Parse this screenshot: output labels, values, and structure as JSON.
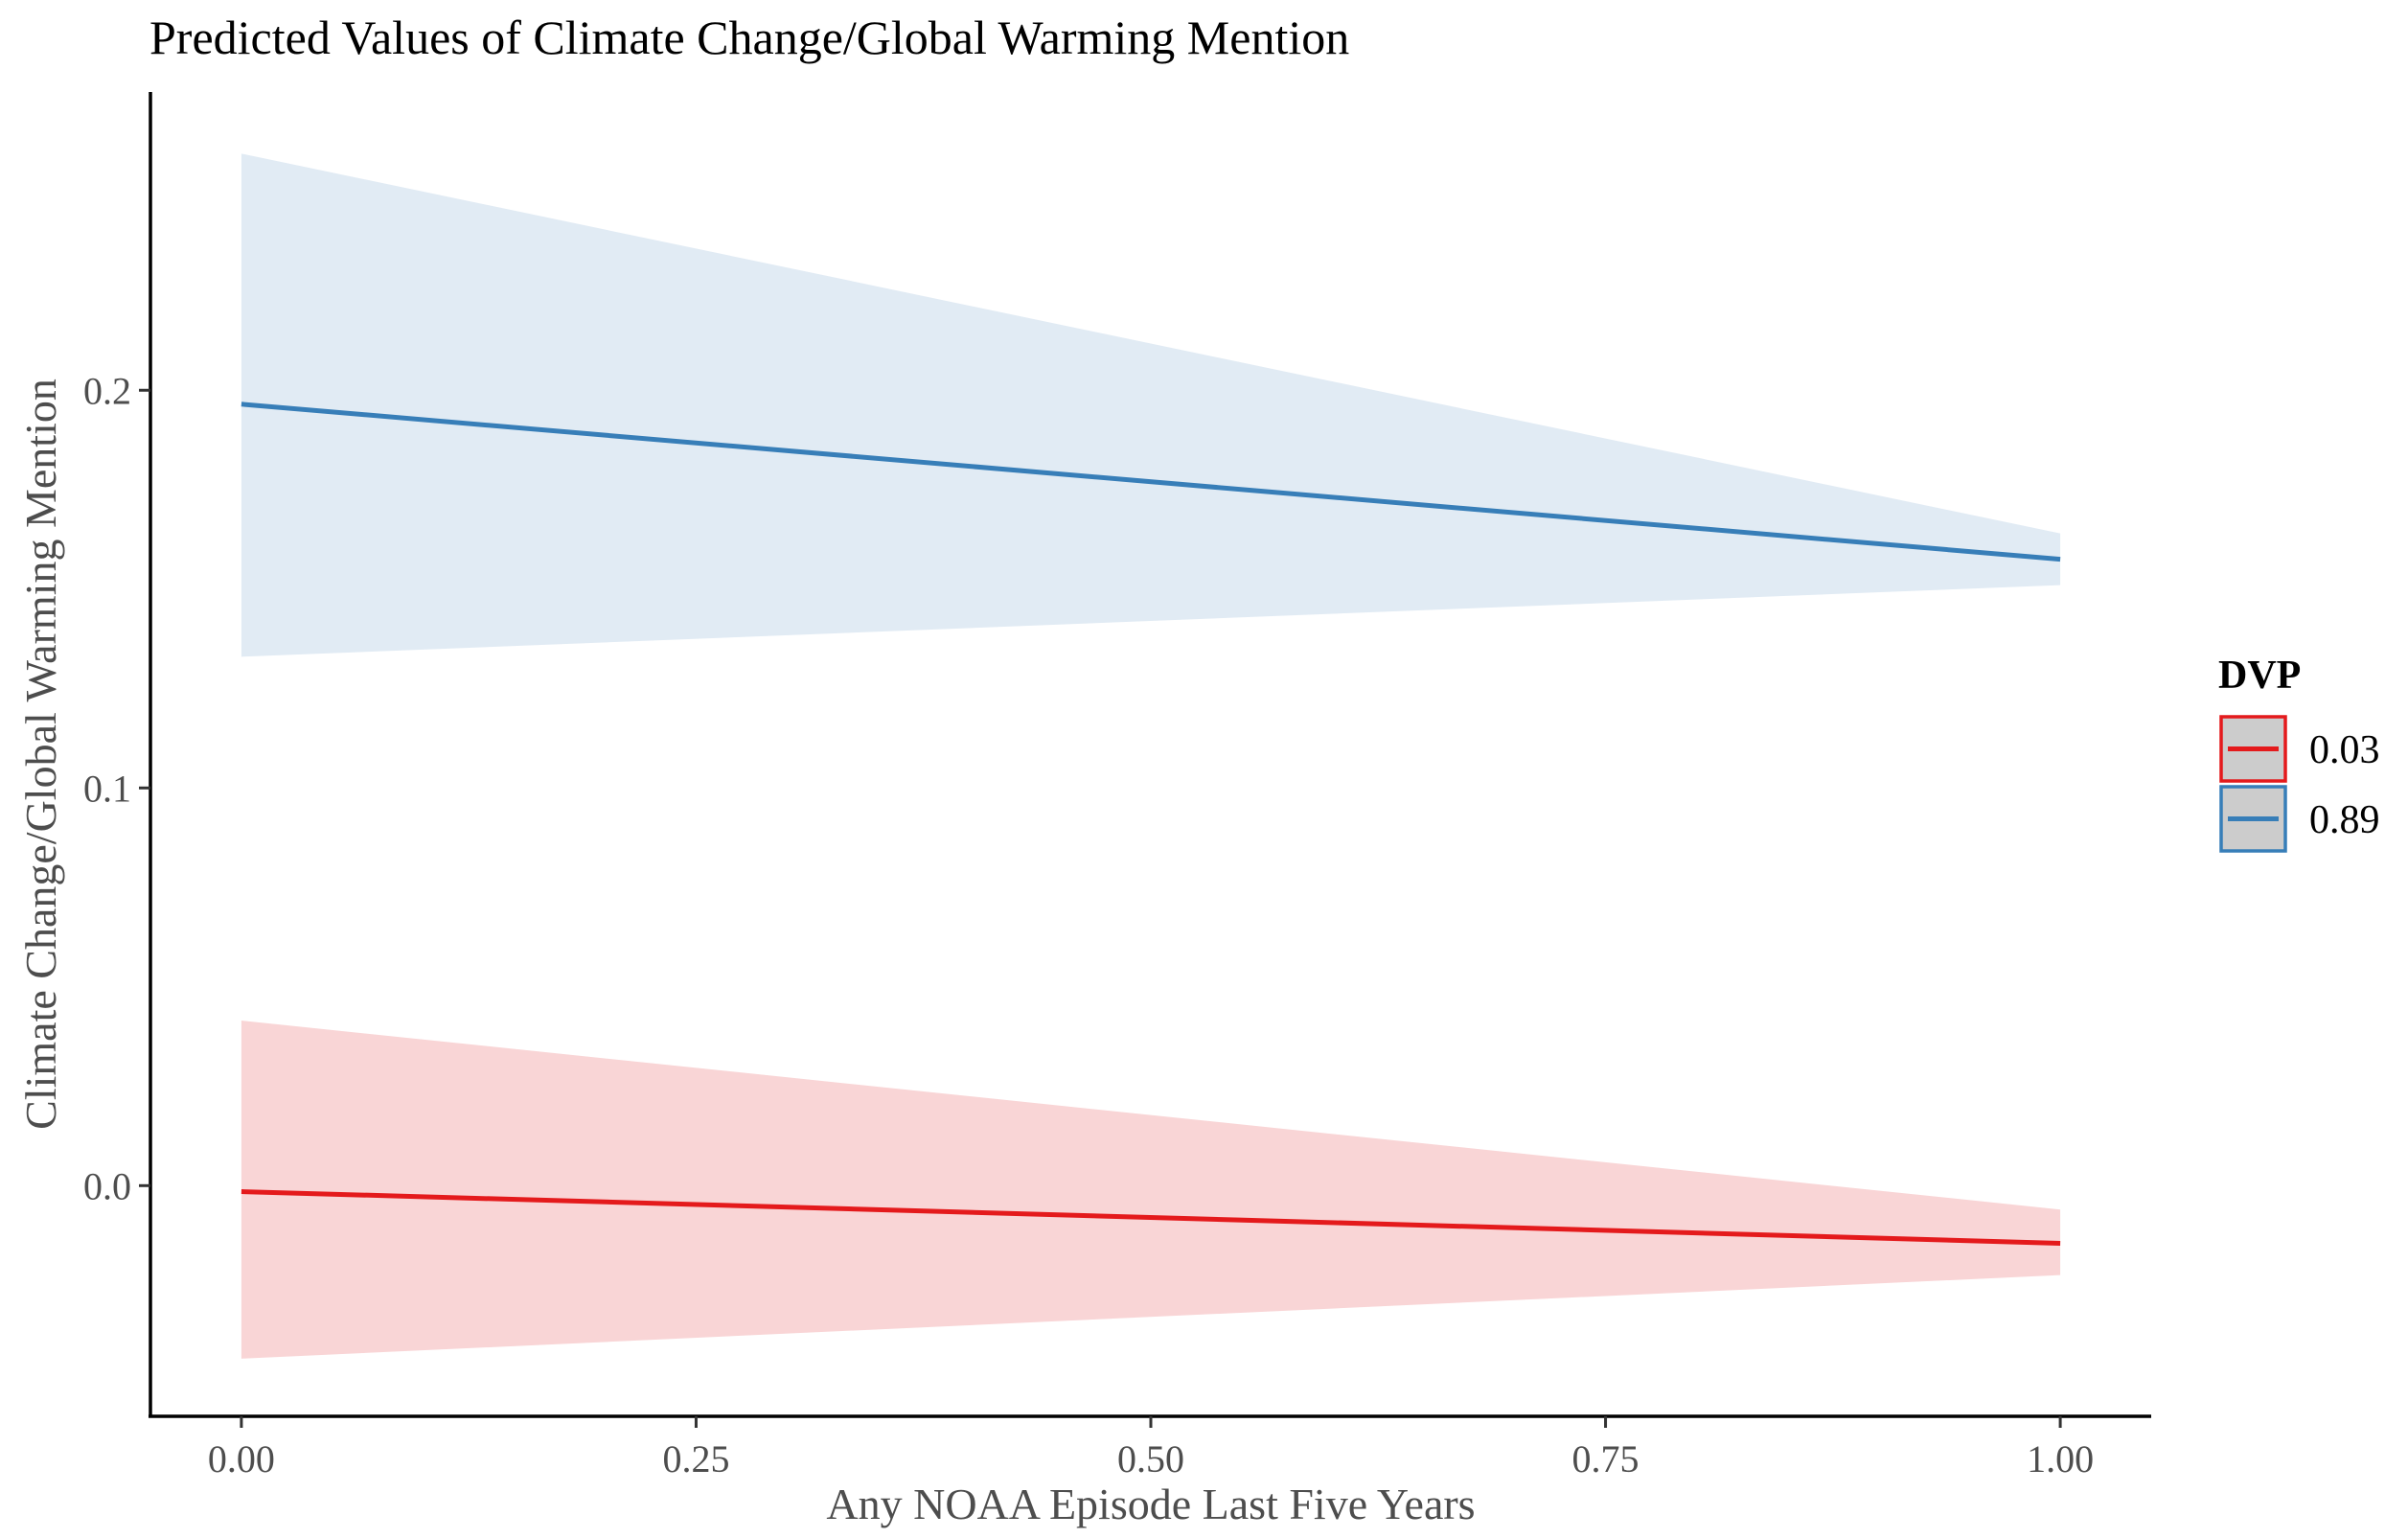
{
  "chart_data": {
    "type": "line",
    "title": "Predicted Values of Climate Change/Global Warming Mention",
    "xlabel": "Any NOAA Episode Last Five Years",
    "ylabel": "Climate Change/Global Warming Mention",
    "xlim": [
      -0.05,
      1.05
    ],
    "ylim": [
      -0.058,
      0.275
    ],
    "x_ticks": [
      0,
      0.25,
      0.5,
      0.75,
      1
    ],
    "x_tick_labels": [
      "0.00",
      "0.25",
      "0.50",
      "0.75",
      "1.00"
    ],
    "y_ticks": [
      0,
      0.1,
      0.2
    ],
    "y_tick_labels": [
      "0.0",
      "0.1",
      "0.2"
    ],
    "legend": {
      "title": "DVP",
      "position": "right"
    },
    "series": [
      {
        "name": "0.03",
        "color": "#E41A1C",
        "fill": "#F9D5D6",
        "x": [
          0,
          1
        ],
        "y": [
          -0.0015,
          -0.0145
        ],
        "lower": [
          -0.0435,
          -0.0225
        ],
        "upper": [
          0.0415,
          -0.006
        ]
      },
      {
        "name": "0.89",
        "color": "#377EB8",
        "fill": "#E1EBF4",
        "x": [
          0,
          1
        ],
        "y": [
          0.1965,
          0.1575
        ],
        "lower": [
          0.133,
          0.151
        ],
        "upper": [
          0.2595,
          0.164
        ]
      }
    ]
  }
}
